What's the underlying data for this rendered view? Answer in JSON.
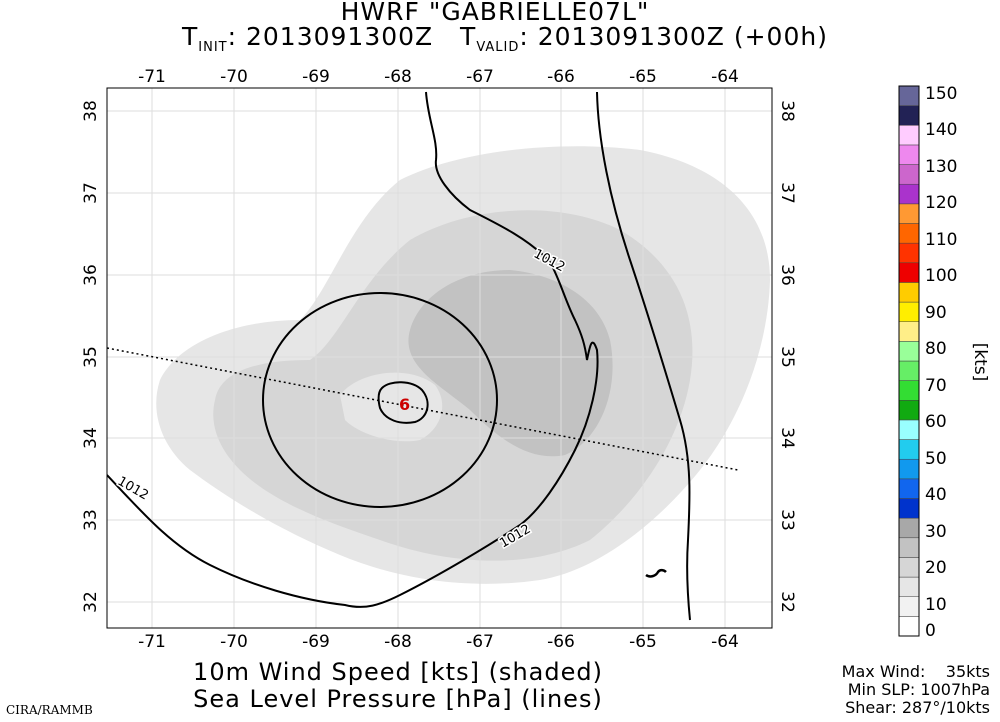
{
  "title": {
    "line1": "HWRF \"GABRIELLE07L\"",
    "init_label": "T",
    "init_sub": "INIT",
    "init_value": ": 2013091300Z",
    "valid_label": "T",
    "valid_sub": "VALID",
    "valid_value": ": 2013091300Z (+00h)"
  },
  "map": {
    "lon_ticks": [
      "-71",
      "-70",
      "-69",
      "-68",
      "-67",
      "-66",
      "-65",
      "-64"
    ],
    "lat_ticks": [
      "38",
      "37",
      "36",
      "35",
      "34",
      "33",
      "32"
    ],
    "contour_labels": [
      "1012",
      "1012",
      "1012"
    ],
    "storm_symbol": "6",
    "colors": {
      "light_shade": "#e6e6e6",
      "mid_shade": "#d2d2d2",
      "dark_shade": "#b9b9b9",
      "storm_symbol": "#cc0000"
    }
  },
  "colorbar": {
    "unit": "[kts]",
    "labels": [
      "150",
      "140",
      "130",
      "120",
      "110",
      "100",
      "90",
      "80",
      "70",
      "60",
      "50",
      "40",
      "30",
      "20",
      "10",
      "0"
    ],
    "colors": [
      "#ffffff",
      "#f2f2f2",
      "#e6e6e6",
      "#d6d6d6",
      "#c2c2c2",
      "#a8a8a8",
      "#0033cc",
      "#1166ee",
      "#1199ee",
      "#22ccee",
      "#99ffff",
      "#11aa11",
      "#33dd33",
      "#66ee66",
      "#99ff99",
      "#ffee88",
      "#ffee00",
      "#ffcc00",
      "#ee0000",
      "#ff3300",
      "#ff6600",
      "#ff9933",
      "#aa33cc",
      "#cc66cc",
      "#ee88ee",
      "#ffccff",
      "#222255",
      "#666699"
    ]
  },
  "footer": {
    "line1": "10m Wind Speed [kts] (shaded)",
    "line2": "Sea Level Pressure [hPa] (lines)"
  },
  "stats": {
    "max_wind": "Max Wind:    35kts",
    "min_slp": "Min SLP: 1007hPa",
    "shear": "Shear: 287°/10kts"
  },
  "credit": "CIRA/RAMMB"
}
